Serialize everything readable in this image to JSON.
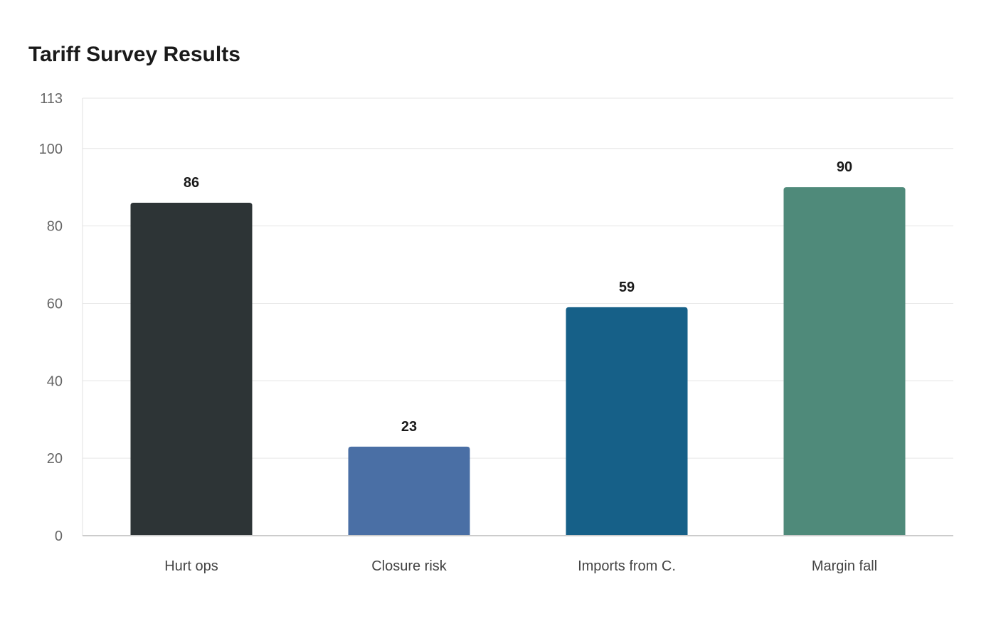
{
  "chart_data": {
    "type": "bar",
    "title": "Tariff Survey Results",
    "xlabel": "",
    "ylabel": "",
    "categories": [
      "Hurt ops",
      "Closure risk",
      "Imports from C.",
      "Margin fall"
    ],
    "values": [
      86,
      23,
      59,
      90
    ],
    "bar_colors": [
      "#2d3436",
      "#4a6fa5",
      "#166088",
      "#4f8a7a"
    ],
    "ylim": [
      0,
      113
    ],
    "yticks": [
      0,
      20,
      40,
      60,
      80,
      100,
      113
    ],
    "grid": true,
    "legend": "none",
    "data_labels": true
  }
}
